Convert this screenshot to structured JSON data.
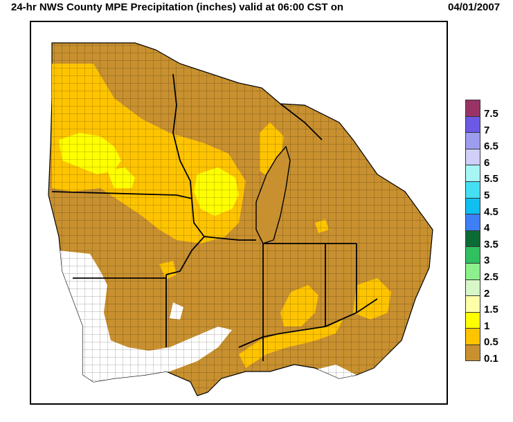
{
  "header": {
    "title": "24-hr NWS County MPE Precipitation (inches) valid at 06:00 CST on",
    "date": "04/01/2007"
  },
  "legend": {
    "items": [
      {
        "label": "7.5",
        "color": "#993366"
      },
      {
        "label": "7",
        "color": "#6c5ae6"
      },
      {
        "label": "6.5",
        "color": "#9d9df0"
      },
      {
        "label": "6",
        "color": "#cfcffa"
      },
      {
        "label": "5.5",
        "color": "#a6f6f6"
      },
      {
        "label": "5",
        "color": "#44dff3"
      },
      {
        "label": "4.5",
        "color": "#10bff0"
      },
      {
        "label": "4",
        "color": "#3f7ff5"
      },
      {
        "label": "3.5",
        "color": "#0c6b35"
      },
      {
        "label": "3",
        "color": "#30c060"
      },
      {
        "label": "2.5",
        "color": "#8cf08c"
      },
      {
        "label": "2",
        "color": "#d8f7c8"
      },
      {
        "label": "1.5",
        "color": "#ffffa8"
      },
      {
        "label": "1",
        "color": "#ffff00"
      },
      {
        "label": "0.5",
        "color": "#ffc400"
      },
      {
        "label": "0.1",
        "color": "#c8902f"
      }
    ]
  },
  "map": {
    "colors": {
      "dominant": "#c8902f",
      "moderate": "#ffc400",
      "heavy": "#ffff00",
      "none": "#ffffff",
      "lake": "#c8902f",
      "border": "#000000"
    }
  }
}
